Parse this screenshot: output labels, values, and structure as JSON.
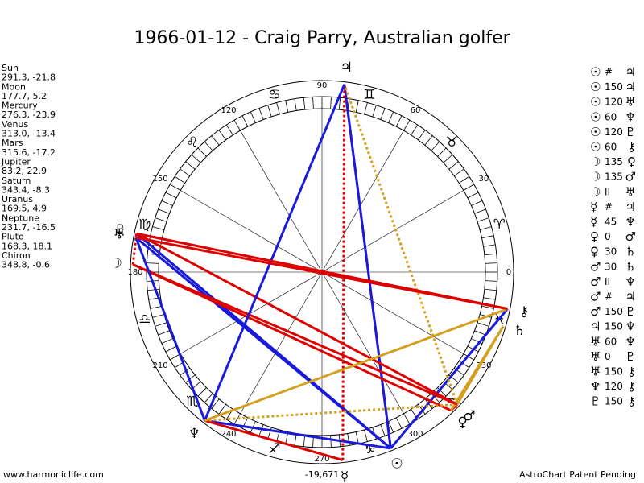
{
  "title": "1966-01-12 - Craig Parry, Australian golfer",
  "planets": [
    {
      "name": "Sun",
      "glyph": "☉",
      "position": "291.3, -21.8"
    },
    {
      "name": "Moon",
      "glyph": "☽",
      "position": "177.7, 5.2"
    },
    {
      "name": "Mercury",
      "glyph": "☿",
      "position": "276.3, -23.9"
    },
    {
      "name": "Venus",
      "glyph": "♀",
      "position": "313.0, -13.4"
    },
    {
      "name": "Mars",
      "glyph": "♂",
      "position": "315.6, -17.2"
    },
    {
      "name": "Jupiter",
      "glyph": "♃",
      "position": "83.2, 22.9"
    },
    {
      "name": "Saturn",
      "glyph": "♄",
      "position": "343.4, -8.3"
    },
    {
      "name": "Uranus",
      "glyph": "♅",
      "position": "169.5, 4.9"
    },
    {
      "name": "Neptune",
      "glyph": "♆",
      "position": "231.7, -16.5"
    },
    {
      "name": "Pluto",
      "glyph": "♇",
      "position": "168.3, 18.1"
    },
    {
      "name": "Chiron",
      "glyph": "⚷",
      "position": "348.8, -0.6"
    }
  ],
  "signs": [
    "♈",
    "♉",
    "♊",
    "♋",
    "♌",
    "♍",
    "♎",
    "♏",
    "♐",
    "♑",
    "♒",
    "♓"
  ],
  "degree_labels": [
    0,
    30,
    60,
    90,
    120,
    150,
    180,
    210,
    240,
    270,
    300,
    330
  ],
  "aspects": [
    {
      "from": "☉",
      "aspect": "#",
      "to": "♃",
      "color": "#dd0000",
      "dotted": true
    },
    {
      "from": "☉",
      "aspect": "150",
      "to": "♃",
      "color": "#1a1adb",
      "dotted": false
    },
    {
      "from": "☉",
      "aspect": "120",
      "to": "♅",
      "color": "#1a1adb",
      "dotted": false
    },
    {
      "from": "☉",
      "aspect": "60",
      "to": "♆",
      "color": "#1a1adb",
      "dotted": false
    },
    {
      "from": "☉",
      "aspect": "120",
      "to": "♇",
      "color": "#1a1adb",
      "dotted": false
    },
    {
      "from": "☉",
      "aspect": "60",
      "to": "⚷",
      "color": "#1a1adb",
      "dotted": false
    },
    {
      "from": "☽",
      "aspect": "135",
      "to": "♀",
      "color": "#dd0000",
      "dotted": false
    },
    {
      "from": "☽",
      "aspect": "135",
      "to": "♂",
      "color": "#dd0000",
      "dotted": false
    },
    {
      "from": "☽",
      "aspect": "II",
      "to": "♅",
      "color": "#dd0000",
      "dotted": true
    },
    {
      "from": "☿",
      "aspect": "#",
      "to": "♃",
      "color": "#dd0000",
      "dotted": true
    },
    {
      "from": "☿",
      "aspect": "45",
      "to": "♆",
      "color": "#dd0000",
      "dotted": false
    },
    {
      "from": "♀",
      "aspect": "0",
      "to": "♂",
      "color": "#dd0000",
      "dotted": false
    },
    {
      "from": "♀",
      "aspect": "30",
      "to": "♄",
      "color": "#d4a020",
      "dotted": false
    },
    {
      "from": "♂",
      "aspect": "30",
      "to": "♄",
      "color": "#d4a020",
      "dotted": false
    },
    {
      "from": "♂",
      "aspect": "II",
      "to": "♆",
      "color": "#d4a020",
      "dotted": true
    },
    {
      "from": "♂",
      "aspect": "#",
      "to": "♃",
      "color": "#d4a020",
      "dotted": true
    },
    {
      "from": "♂",
      "aspect": "150",
      "to": "♇",
      "color": "#dd0000",
      "dotted": false
    },
    {
      "from": "♃",
      "aspect": "150",
      "to": "♆",
      "color": "#1a1adb",
      "dotted": false
    },
    {
      "from": "♅",
      "aspect": "60",
      "to": "♆",
      "color": "#1a1adb",
      "dotted": false
    },
    {
      "from": "♅",
      "aspect": "0",
      "to": "♇",
      "color": "#dd0000",
      "dotted": false
    },
    {
      "from": "♅",
      "aspect": "150",
      "to": "⚷",
      "color": "#dd0000",
      "dotted": false
    },
    {
      "from": "♆",
      "aspect": "120",
      "to": "⚷",
      "color": "#d4a020",
      "dotted": false
    },
    {
      "from": "♇",
      "aspect": "150",
      "to": "⚷",
      "color": "#dd0000",
      "dotted": false
    }
  ],
  "footer": {
    "left": "www.harmoniclife.com",
    "center": "-19,671",
    "right": "AstroChart Patent Pending"
  }
}
